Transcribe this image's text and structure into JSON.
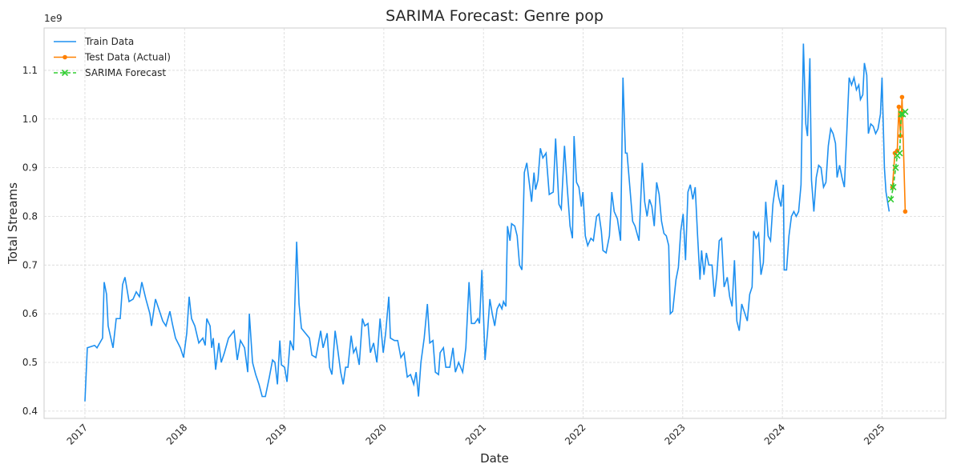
{
  "chart_data": {
    "type": "line",
    "title": "SARIMA Forecast: Genre pop",
    "xlabel": "Date",
    "ylabel": "Total Streams",
    "y_offset_label": "1e9",
    "xlim": [
      2016.59,
      2025.64
    ],
    "xticks": [
      2017,
      2018,
      2019,
      2020,
      2021,
      2022,
      2023,
      2024,
      2025
    ],
    "ylim": [
      0.385,
      1.187
    ],
    "yticks": [
      0.4,
      0.5,
      0.6,
      0.7,
      0.8,
      0.9,
      {
        "value": 1,
        "label": "1.0"
      },
      1.1
    ],
    "grid": true,
    "legend": "upper left",
    "series": [
      {
        "name": "Train Data",
        "color": "#1e90f0",
        "marker": "none",
        "linestyle": "solid",
        "x": [
          2017.0,
          2017.024,
          2017.097,
          2017.121,
          2017.177,
          2017.193,
          2017.217,
          2017.233,
          2017.282,
          2017.314,
          2017.354,
          2017.378,
          2017.402,
          2017.443,
          2017.483,
          2017.515,
          2017.547,
          2017.571,
          2017.612,
          2017.652,
          2017.668,
          2017.708,
          2017.741,
          2017.781,
          2017.813,
          2017.853,
          2017.877,
          2017.909,
          2017.958,
          2017.99,
          2018.022,
          2018.046,
          2018.07,
          2018.103,
          2018.143,
          2018.183,
          2018.207,
          2018.223,
          2018.256,
          2018.272,
          2018.288,
          2018.312,
          2018.344,
          2018.368,
          2018.4,
          2018.441,
          2018.497,
          2018.529,
          2018.561,
          2018.602,
          2018.634,
          2018.65,
          2018.682,
          2018.714,
          2018.747,
          2018.779,
          2018.811,
          2018.851,
          2018.883,
          2018.907,
          2018.932,
          2018.956,
          2018.972,
          2019.004,
          2019.028,
          2019.06,
          2019.093,
          2019.125,
          2019.149,
          2019.173,
          2019.213,
          2019.253,
          2019.278,
          2019.318,
          2019.366,
          2019.39,
          2019.431,
          2019.455,
          2019.479,
          2019.511,
          2019.535,
          2019.567,
          2019.592,
          2019.616,
          2019.64,
          2019.672,
          2019.696,
          2019.72,
          2019.753,
          2019.785,
          2019.809,
          2019.841,
          2019.865,
          2019.897,
          2019.93,
          2019.962,
          2019.994,
          2020.018,
          2020.05,
          2020.066,
          2020.107,
          2020.139,
          2020.171,
          2020.203,
          2020.235,
          2020.268,
          2020.3,
          2020.324,
          2020.348,
          2020.372,
          2020.405,
          2020.437,
          2020.461,
          2020.493,
          2020.517,
          2020.549,
          2020.565,
          2020.598,
          2020.622,
          2020.662,
          2020.694,
          2020.718,
          2020.751,
          2020.791,
          2020.823,
          2020.855,
          2020.879,
          2020.911,
          2020.944,
          2020.96,
          2020.984,
          2021.016,
          2021.04,
          2021.064,
          2021.088,
          2021.113,
          2021.137,
          2021.161,
          2021.185,
          2021.201,
          2021.225,
          2021.241,
          2021.266,
          2021.282,
          2021.314,
          2021.338,
          2021.362,
          2021.386,
          2021.41,
          2021.435,
          2021.459,
          2021.483,
          2021.507,
          2021.523,
          2021.547,
          2021.571,
          2021.596,
          2021.628,
          2021.66,
          2021.7,
          2021.724,
          2021.757,
          2021.781,
          2021.813,
          2021.837,
          2021.869,
          2021.893,
          2021.909,
          2021.934,
          2021.958,
          2021.982,
          2021.998,
          2022.022,
          2022.046,
          2022.078,
          2022.103,
          2022.135,
          2022.159,
          2022.183,
          2022.199,
          2022.231,
          2022.264,
          2022.288,
          2022.312,
          2022.344,
          2022.376,
          2022.4,
          2022.425,
          2022.441,
          2022.465,
          2022.497,
          2022.521,
          2022.561,
          2022.594,
          2022.618,
          2022.642,
          2022.666,
          2022.69,
          2022.714,
          2022.738,
          2022.763,
          2022.787,
          2022.811,
          2022.835,
          2022.859,
          2022.875,
          2022.899,
          2022.932,
          2022.956,
          2022.98,
          2023.004,
          2023.028,
          2023.052,
          2023.076,
          2023.101,
          2023.125,
          2023.149,
          2023.173,
          2023.189,
          2023.213,
          2023.237,
          2023.262,
          2023.294,
          2023.318,
          2023.342,
          2023.366,
          2023.39,
          2023.415,
          2023.447,
          2023.471,
          2023.495,
          2023.519,
          2023.543,
          2023.567,
          2023.592,
          2023.624,
          2023.648,
          2023.672,
          2023.696,
          2023.712,
          2023.736,
          2023.761,
          2023.785,
          2023.809,
          2023.833,
          2023.857,
          2023.881,
          2023.905,
          2023.938,
          2023.962,
          2023.986,
          2024.01,
          2024.018,
          2024.042,
          2024.066,
          2024.091,
          2024.115,
          2024.139,
          2024.163,
          2024.187,
          2024.211,
          2024.235,
          2024.252,
          2024.276,
          2024.292,
          2024.316,
          2024.34,
          2024.364,
          2024.388,
          2024.413,
          2024.437,
          2024.461,
          2024.485,
          2024.509,
          2024.533,
          2024.549,
          2024.574,
          2024.598,
          2024.622,
          2024.646,
          2024.67,
          2024.694,
          2024.719,
          2024.743,
          2024.767,
          2024.783,
          2024.807,
          2024.823,
          2024.847,
          2024.863,
          2024.887,
          2024.912,
          2024.936,
          2024.96,
          2024.984,
          2025.0,
          2025.024,
          2025.04,
          2025.056,
          2025.072
        ],
        "values": [
          0.42,
          0.53,
          0.535,
          0.53,
          0.55,
          0.665,
          0.64,
          0.575,
          0.53,
          0.59,
          0.59,
          0.66,
          0.675,
          0.625,
          0.63,
          0.645,
          0.635,
          0.665,
          0.63,
          0.6,
          0.575,
          0.63,
          0.61,
          0.585,
          0.575,
          0.605,
          0.58,
          0.55,
          0.53,
          0.51,
          0.56,
          0.635,
          0.59,
          0.575,
          0.54,
          0.55,
          0.535,
          0.59,
          0.575,
          0.53,
          0.55,
          0.485,
          0.54,
          0.5,
          0.52,
          0.55,
          0.565,
          0.505,
          0.545,
          0.53,
          0.48,
          0.6,
          0.5,
          0.475,
          0.455,
          0.43,
          0.43,
          0.47,
          0.505,
          0.5,
          0.455,
          0.545,
          0.495,
          0.49,
          0.46,
          0.545,
          0.525,
          0.748,
          0.62,
          0.57,
          0.56,
          0.55,
          0.515,
          0.51,
          0.565,
          0.53,
          0.56,
          0.49,
          0.475,
          0.565,
          0.53,
          0.48,
          0.455,
          0.49,
          0.49,
          0.555,
          0.52,
          0.53,
          0.495,
          0.59,
          0.575,
          0.58,
          0.52,
          0.54,
          0.5,
          0.59,
          0.52,
          0.56,
          0.635,
          0.55,
          0.545,
          0.545,
          0.51,
          0.52,
          0.47,
          0.475,
          0.455,
          0.48,
          0.43,
          0.5,
          0.55,
          0.62,
          0.54,
          0.545,
          0.48,
          0.475,
          0.52,
          0.53,
          0.49,
          0.49,
          0.53,
          0.48,
          0.5,
          0.48,
          0.53,
          0.665,
          0.58,
          0.58,
          0.59,
          0.58,
          0.69,
          0.505,
          0.56,
          0.63,
          0.6,
          0.575,
          0.61,
          0.62,
          0.61,
          0.625,
          0.615,
          0.78,
          0.75,
          0.785,
          0.78,
          0.76,
          0.7,
          0.69,
          0.89,
          0.91,
          0.87,
          0.83,
          0.89,
          0.855,
          0.875,
          0.94,
          0.92,
          0.93,
          0.845,
          0.85,
          0.96,
          0.825,
          0.815,
          0.945,
          0.87,
          0.78,
          0.755,
          0.965,
          0.87,
          0.86,
          0.82,
          0.85,
          0.76,
          0.74,
          0.755,
          0.75,
          0.8,
          0.805,
          0.77,
          0.73,
          0.725,
          0.76,
          0.85,
          0.81,
          0.795,
          0.75,
          1.085,
          0.93,
          0.93,
          0.87,
          0.79,
          0.78,
          0.75,
          0.91,
          0.83,
          0.8,
          0.835,
          0.82,
          0.78,
          0.87,
          0.845,
          0.79,
          0.765,
          0.76,
          0.74,
          0.6,
          0.605,
          0.67,
          0.695,
          0.77,
          0.805,
          0.71,
          0.85,
          0.865,
          0.835,
          0.86,
          0.76,
          0.67,
          0.73,
          0.68,
          0.725,
          0.7,
          0.7,
          0.635,
          0.68,
          0.75,
          0.755,
          0.655,
          0.675,
          0.635,
          0.615,
          0.71,
          0.585,
          0.565,
          0.62,
          0.6,
          0.585,
          0.64,
          0.655,
          0.77,
          0.755,
          0.765,
          0.68,
          0.705,
          0.83,
          0.76,
          0.75,
          0.825,
          0.875,
          0.84,
          0.82,
          0.865,
          0.69,
          0.69,
          0.76,
          0.8,
          0.81,
          0.8,
          0.81,
          0.865,
          1.155,
          0.99,
          0.965,
          1.125,
          0.875,
          0.81,
          0.88,
          0.905,
          0.9,
          0.86,
          0.87,
          0.945,
          0.98,
          0.97,
          0.95,
          0.88,
          0.905,
          0.88,
          0.86,
          0.97,
          1.085,
          1.07,
          1.085,
          1.06,
          1.07,
          1.04,
          1.05,
          1.115,
          1.09,
          0.97,
          0.99,
          0.985,
          0.97,
          0.98,
          1.01,
          1.085,
          0.9,
          0.85,
          0.83,
          0.81
        ]
      },
      {
        "name": "Test Data (Actual)",
        "color": "#ff8000",
        "marker": "dot",
        "linestyle": "solid",
        "x": [
          2025.105,
          2025.129,
          2025.153,
          2025.169,
          2025.185,
          2025.201,
          2025.233
        ],
        "values": [
          0.86,
          0.93,
          0.935,
          1.025,
          0.965,
          1.045,
          0.81
        ]
      },
      {
        "name": "SARIMA Forecast",
        "color": "#32cd32",
        "marker": "x",
        "linestyle": "dashed",
        "x": [
          2025.088,
          2025.113,
          2025.137,
          2025.153,
          2025.177,
          2025.193,
          2025.209,
          2025.233
        ],
        "values": [
          0.835,
          0.86,
          0.9,
          0.925,
          0.93,
          1.01,
          1.01,
          1.015
        ]
      }
    ]
  }
}
